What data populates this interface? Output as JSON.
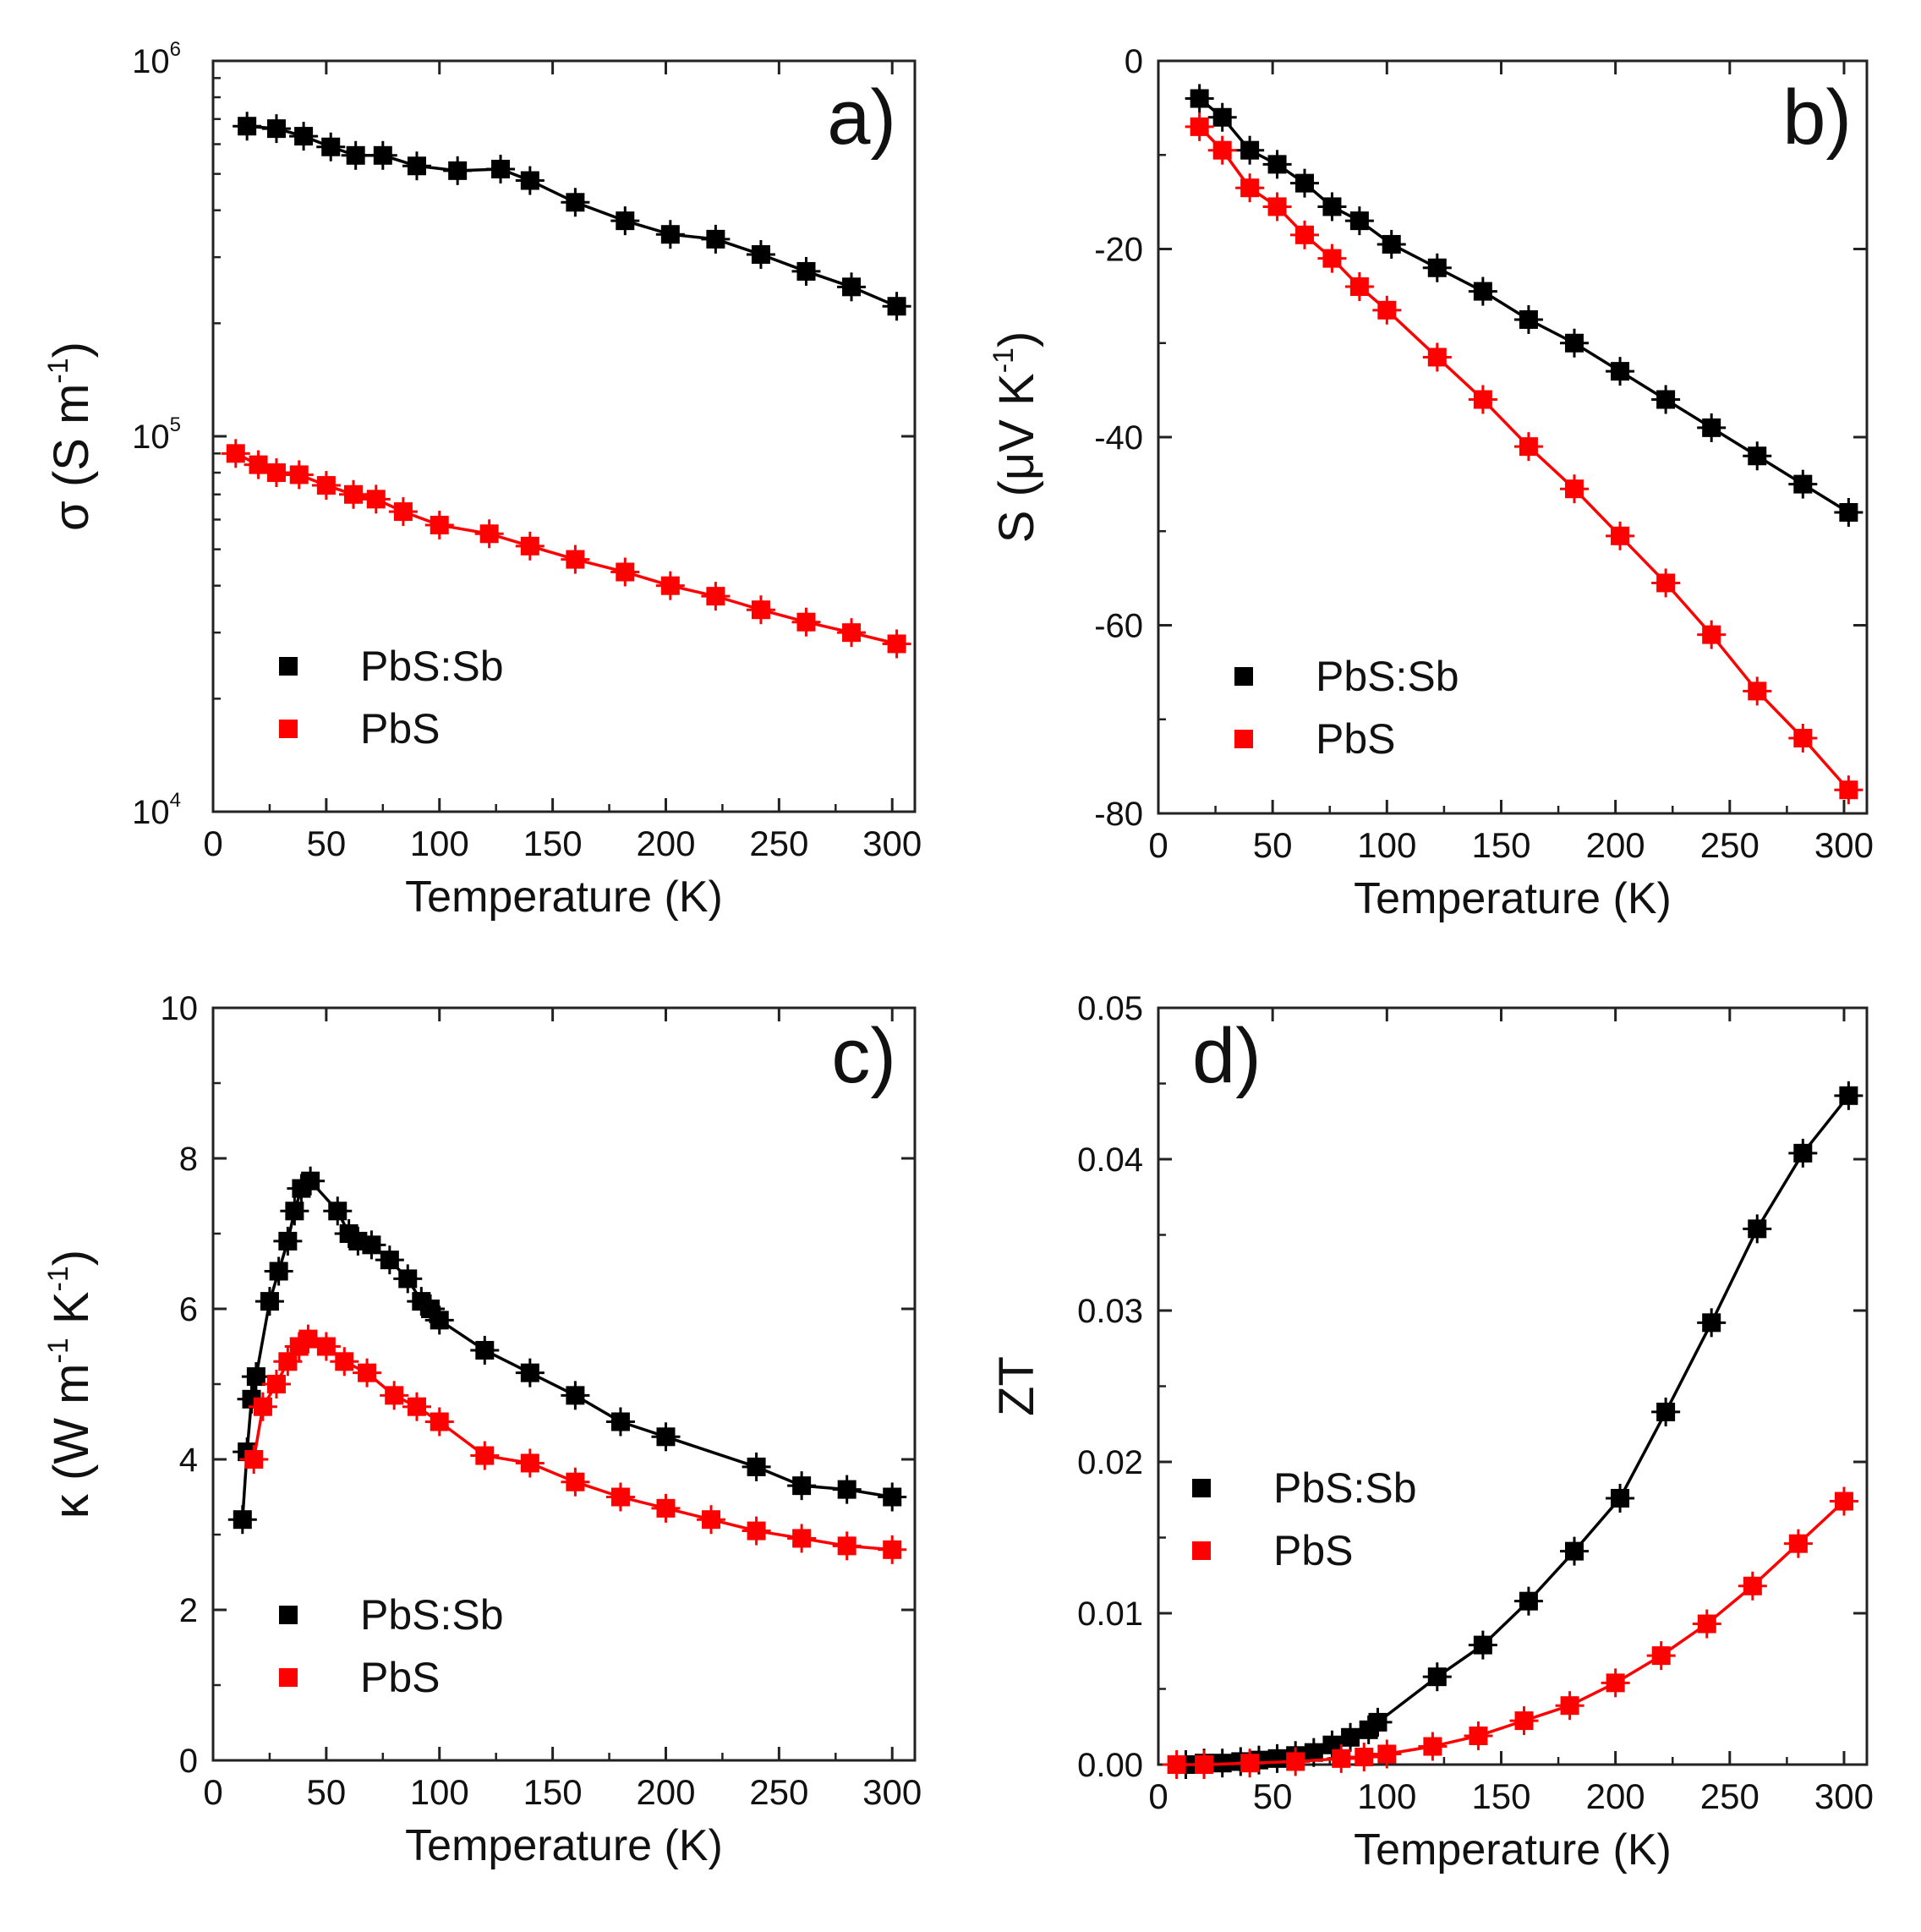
{
  "chart_data": [
    {
      "panel_label": "a)",
      "type": "line",
      "yscale": "log",
      "xlabel": "Temperature (K)",
      "ylabel": {
        "main": "σ (S m",
        "sup": "-1",
        "tail": ")"
      },
      "xlim": [
        0,
        310
      ],
      "ylim": [
        10000,
        1000000
      ],
      "xticks": [
        0,
        50,
        100,
        150,
        200,
        250,
        300
      ],
      "yticks": [
        {
          "base": "10",
          "exp": "4",
          "value": 10000
        },
        {
          "base": "10",
          "exp": "5",
          "value": 100000
        },
        {
          "base": "10",
          "exp": "6",
          "value": 1000000
        }
      ],
      "legend": {
        "position": "lower-left"
      },
      "series": [
        {
          "name": "PbS:Sb",
          "color": "#000000",
          "x": [
            15,
            28,
            40,
            52,
            63,
            75,
            90,
            108,
            127,
            140,
            160,
            182,
            202,
            222,
            242,
            262,
            282,
            302
          ],
          "y": [
            670000,
            660000,
            630000,
            590000,
            560000,
            560000,
            525000,
            510000,
            515000,
            480000,
            420000,
            375000,
            345000,
            335000,
            305000,
            275000,
            250000,
            222000
          ]
        },
        {
          "name": "PbS",
          "color": "#ff0000",
          "x": [
            10,
            20,
            28,
            38,
            50,
            62,
            72,
            84,
            100,
            122,
            140,
            160,
            182,
            202,
            222,
            242,
            262,
            282,
            302
          ],
          "y": [
            90000,
            84000,
            80000,
            79000,
            74000,
            70000,
            68000,
            63000,
            58000,
            55000,
            51000,
            47000,
            43500,
            40000,
            37500,
            34500,
            32000,
            30000,
            28000
          ]
        }
      ]
    },
    {
      "panel_label": "b)",
      "type": "line",
      "yscale": "linear",
      "xlabel": "Temperature (K)",
      "ylabel": {
        "main": "S (μV K",
        "sup": "-1",
        "tail": ")"
      },
      "xlim": [
        0,
        310
      ],
      "ylim": [
        -80,
        0
      ],
      "xticks": [
        0,
        50,
        100,
        150,
        200,
        250,
        300
      ],
      "yticks": [
        0,
        -20,
        -40,
        -60,
        -80
      ],
      "legend": {
        "position": "lower-left"
      },
      "series": [
        {
          "name": "PbS:Sb",
          "color": "#000000",
          "x": [
            18,
            28,
            40,
            52,
            64,
            76,
            88,
            102,
            122,
            142,
            162,
            182,
            202,
            222,
            242,
            262,
            282,
            302
          ],
          "y": [
            -4,
            -6,
            -9.5,
            -11,
            -13,
            -15.5,
            -17,
            -19.5,
            -22,
            -24.5,
            -27.5,
            -30,
            -33,
            -36,
            -39,
            -42,
            -45,
            -48
          ]
        },
        {
          "name": "PbS",
          "color": "#ff0000",
          "x": [
            18,
            28,
            40,
            52,
            64,
            76,
            88,
            100,
            122,
            142,
            162,
            182,
            202,
            222,
            242,
            262,
            282,
            302
          ],
          "y": [
            -7,
            -9.5,
            -13.5,
            -15.5,
            -18.5,
            -21,
            -24,
            -26.5,
            -31.5,
            -36,
            -41,
            -45.5,
            -50.5,
            -55.5,
            -61,
            -67,
            -72,
            -77.5
          ]
        }
      ]
    },
    {
      "panel_label": "c)",
      "type": "line",
      "yscale": "linear",
      "xlabel": "Temperature (K)",
      "ylabel": {
        "main": "κ (W m",
        "sup": "-1",
        "mid": " K",
        "sup2": "-1",
        "tail": ")"
      },
      "xlim": [
        0,
        310
      ],
      "ylim": [
        0,
        10
      ],
      "xticks": [
        0,
        50,
        100,
        150,
        200,
        250,
        300
      ],
      "yticks": [
        0,
        2,
        4,
        6,
        8,
        10
      ],
      "legend": {
        "position": "lower-left"
      },
      "series": [
        {
          "name": "PbS:Sb",
          "color": "#000000",
          "x": [
            13,
            15,
            17,
            19,
            25,
            29,
            33,
            36,
            39,
            43,
            55,
            60,
            64,
            70,
            78,
            86,
            92,
            96,
            100,
            120,
            140,
            160,
            180,
            200,
            240,
            260,
            280,
            300
          ],
          "y": [
            3.2,
            4.1,
            4.8,
            5.1,
            6.1,
            6.5,
            6.9,
            7.3,
            7.6,
            7.7,
            7.3,
            7.0,
            6.9,
            6.85,
            6.65,
            6.4,
            6.1,
            6.0,
            5.85,
            5.45,
            5.15,
            4.85,
            4.5,
            4.3,
            3.9,
            3.65,
            3.6,
            3.5
          ]
        },
        {
          "name": "PbS",
          "color": "#ff0000",
          "x": [
            18,
            22,
            28,
            33,
            38,
            42,
            50,
            58,
            68,
            80,
            90,
            100,
            120,
            140,
            160,
            180,
            200,
            220,
            240,
            260,
            280,
            300
          ],
          "y": [
            4.0,
            4.7,
            5.0,
            5.3,
            5.5,
            5.6,
            5.5,
            5.3,
            5.15,
            4.85,
            4.7,
            4.5,
            4.05,
            3.95,
            3.7,
            3.5,
            3.35,
            3.2,
            3.05,
            2.95,
            2.85,
            2.8
          ]
        }
      ]
    },
    {
      "panel_label": "d)",
      "type": "line",
      "yscale": "linear",
      "xlabel": "Temperature (K)",
      "ylabel": {
        "main": "ZT"
      },
      "xlim": [
        0,
        310
      ],
      "ylim": [
        0,
        0.05
      ],
      "xticks": [
        0,
        50,
        100,
        150,
        200,
        250,
        300
      ],
      "yticks": [
        "0.00",
        "0.01",
        "0.02",
        "0.03",
        "0.04",
        "0.05"
      ],
      "legend": {
        "position": "lower-left"
      },
      "series": [
        {
          "name": "PbS:Sb",
          "color": "#000000",
          "x": [
            12,
            20,
            28,
            36,
            44,
            52,
            60,
            68,
            76,
            84,
            92,
            96,
            122,
            142,
            162,
            182,
            202,
            222,
            242,
            262,
            282,
            302
          ],
          "y": [
            0,
            0.0001,
            0.0001,
            0.0002,
            0.0003,
            0.0004,
            0.0006,
            0.0008,
            0.0013,
            0.0018,
            0.0023,
            0.0028,
            0.0058,
            0.0079,
            0.0108,
            0.0141,
            0.0176,
            0.0233,
            0.0292,
            0.0354,
            0.0404,
            0.0442
          ]
        },
        {
          "name": "PbS",
          "color": "#ff0000",
          "x": [
            8,
            20,
            40,
            60,
            80,
            90,
            100,
            120,
            140,
            160,
            180,
            200,
            220,
            240,
            260,
            280,
            300
          ],
          "y": [
            0,
            0,
            0.0001,
            0.0002,
            0.0004,
            0.0005,
            0.0007,
            0.0012,
            0.0019,
            0.0029,
            0.0039,
            0.0054,
            0.0072,
            0.0093,
            0.0118,
            0.0146,
            0.0174
          ]
        }
      ]
    }
  ]
}
